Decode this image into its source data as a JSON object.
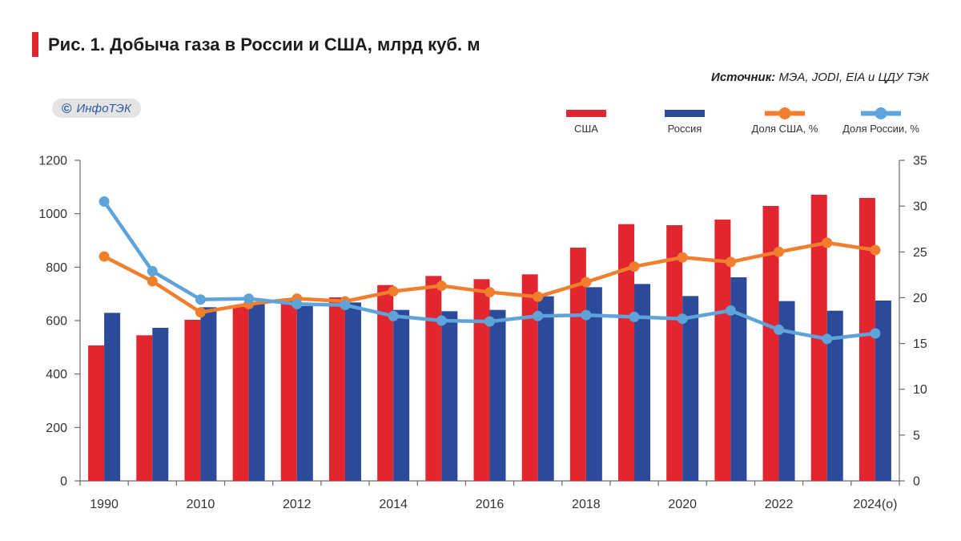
{
  "chart_data": {
    "type": "bar",
    "title": "Рис. 1. Добыча газа в России и США, млрд куб. м",
    "source": {
      "label": "Источник:",
      "text": "МЭА, JODI, EIA и ЦДУ ТЭК"
    },
    "categories": [
      "1990",
      "",
      "2010",
      "",
      "2012",
      "",
      "2014",
      "",
      "2016",
      "",
      "2018",
      "",
      "2020",
      "",
      "2022",
      "",
      "2024(о)"
    ],
    "y_left": {
      "min": 0,
      "max": 1200,
      "ticks": [
        0,
        200,
        400,
        600,
        800,
        1000,
        1200
      ]
    },
    "y_right": {
      "min": 0,
      "max": 35,
      "ticks": [
        0,
        5,
        10,
        15,
        20,
        25,
        30,
        35
      ]
    },
    "grid": false,
    "legend_position": "top-right",
    "series": [
      {
        "name": "США",
        "type": "bar",
        "axis": "left",
        "color": "#e2262f",
        "values": [
          507,
          545,
          603,
          651,
          681,
          687,
          733,
          767,
          755,
          773,
          873,
          961,
          957,
          978,
          1029,
          1071,
          1059
        ]
      },
      {
        "name": "Россия",
        "type": "bar",
        "axis": "left",
        "color": "#2b4a9a",
        "values": [
          629,
          573,
          650,
          670,
          654,
          668,
          640,
          635,
          640,
          691,
          725,
          737,
          692,
          762,
          673,
          637,
          675
        ]
      },
      {
        "name": "Доля США, %",
        "type": "line",
        "axis": "right",
        "color": "#f07e2c",
        "values": [
          24.5,
          21.8,
          18.4,
          19.3,
          19.9,
          19.6,
          20.7,
          21.3,
          20.6,
          20.1,
          21.7,
          23.4,
          24.4,
          23.9,
          25.0,
          26.0,
          25.2
        ]
      },
      {
        "name": "Доля России, %",
        "type": "line",
        "axis": "right",
        "color": "#5ea3d9",
        "values": [
          30.5,
          22.9,
          19.8,
          19.9,
          19.3,
          19.2,
          18.0,
          17.5,
          17.4,
          18.0,
          18.1,
          17.9,
          17.7,
          18.6,
          16.5,
          15.5,
          16.1
        ]
      }
    ]
  },
  "logo": {
    "symbol": "©",
    "text": "ИнфоТЭК"
  },
  "colors": {
    "title_marker": "#e2262f",
    "logo_text": "#2f5aa5",
    "logo_background": "#e4e4e4"
  }
}
